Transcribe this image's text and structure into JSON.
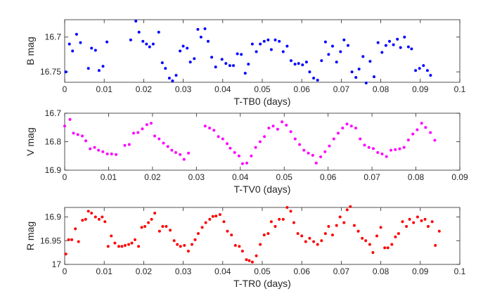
{
  "chart_data": [
    {
      "type": "scatter",
      "xlabel": "T-TB0 (days)",
      "ylabel": "B mag",
      "xlim": [
        0,
        0.1
      ],
      "ylim": [
        16.765,
        16.675
      ],
      "y_reversed": true,
      "xticks": [
        0,
        0.01,
        0.02,
        0.03,
        0.04,
        0.05,
        0.06,
        0.07,
        0.08,
        0.09,
        0.1
      ],
      "xtick_labels": [
        "0",
        "0.01",
        "0.02",
        "0.03",
        "0.04",
        "0.05",
        "0.06",
        "0.07",
        "0.08",
        "0.09",
        "0.1"
      ],
      "yticks": [
        16.7,
        16.75
      ],
      "ytick_labels": [
        "16.7",
        "16.75"
      ],
      "grid": false,
      "marker_color": "#0000ff",
      "series": [
        {
          "name": "B",
          "x": [
            0.0003,
            0.0012,
            0.002,
            0.003,
            0.004,
            0.006,
            0.0068,
            0.0078,
            0.0087,
            0.0097,
            0.0107,
            0.0167,
            0.018,
            0.0188,
            0.0198,
            0.0207,
            0.0215,
            0.0224,
            0.0238,
            0.0247,
            0.0255,
            0.0265,
            0.0273,
            0.0282,
            0.0292,
            0.03,
            0.031,
            0.0318,
            0.0328,
            0.0337,
            0.0345,
            0.0355,
            0.0363,
            0.0372,
            0.0382,
            0.0398,
            0.0408,
            0.0418,
            0.0427,
            0.0437,
            0.0447,
            0.0457,
            0.0465,
            0.0475,
            0.0485,
            0.0495,
            0.0505,
            0.0515,
            0.0523,
            0.0533,
            0.0543,
            0.0553,
            0.0563,
            0.0573,
            0.0583,
            0.0592,
            0.0602,
            0.0612,
            0.062,
            0.063,
            0.064,
            0.065,
            0.066,
            0.0668,
            0.0678,
            0.0688,
            0.0698,
            0.0707,
            0.0717,
            0.0727,
            0.0737,
            0.0745,
            0.0755,
            0.0763,
            0.0773,
            0.0783,
            0.0793,
            0.0803,
            0.0813,
            0.0822,
            0.0832,
            0.0842,
            0.085,
            0.086,
            0.087,
            0.0878,
            0.0888,
            0.0898,
            0.0908,
            0.0918,
            0.0926
          ],
          "y": [
            16.75,
            16.71,
            16.72,
            16.696,
            16.708,
            16.745,
            16.716,
            16.719,
            16.748,
            16.742,
            16.707,
            16.704,
            16.677,
            16.693,
            16.706,
            16.71,
            16.714,
            16.71,
            16.693,
            16.737,
            16.745,
            16.759,
            16.763,
            16.755,
            16.72,
            16.713,
            16.716,
            16.736,
            16.731,
            16.689,
            16.7,
            16.688,
            16.706,
            16.729,
            16.743,
            16.732,
            16.738,
            16.741,
            16.741,
            16.724,
            16.725,
            16.752,
            16.739,
            16.71,
            16.721,
            16.71,
            16.706,
            16.704,
            16.718,
            16.704,
            16.706,
            16.721,
            16.713,
            16.734,
            16.739,
            16.738,
            16.74,
            16.736,
            16.75,
            16.759,
            16.762,
            16.734,
            16.707,
            16.725,
            16.713,
            16.736,
            16.721,
            16.704,
            16.712,
            16.75,
            16.758,
            16.746,
            16.728,
            16.766,
            16.735,
            16.757,
            16.708,
            16.722,
            16.712,
            16.706,
            16.711,
            16.703,
            16.715,
            16.7,
            16.714,
            16.717,
            16.748,
            16.745,
            16.741,
            16.748,
            16.755
          ]
        }
      ]
    },
    {
      "type": "scatter",
      "xlabel": "T-TV0 (days)",
      "ylabel": "V mag",
      "xlim": [
        0,
        0.09
      ],
      "ylim": [
        16.9,
        16.7
      ],
      "y_reversed": true,
      "xticks": [
        0,
        0.01,
        0.02,
        0.03,
        0.04,
        0.05,
        0.06,
        0.07,
        0.08,
        0.09
      ],
      "xtick_labels": [
        "0",
        "0.01",
        "0.02",
        "0.03",
        "0.04",
        "0.05",
        "0.06",
        "0.07",
        "0.08",
        "0.09"
      ],
      "yticks": [
        16.7,
        16.8,
        16.9
      ],
      "ytick_labels": [
        "16.7",
        "16.8",
        "16.9"
      ],
      "grid": false,
      "marker_color": "#ff00ff",
      "series": [
        {
          "name": "V",
          "x": [
            0.0,
            0.0012,
            0.002,
            0.003,
            0.004,
            0.0048,
            0.0058,
            0.0068,
            0.0077,
            0.0087,
            0.0097,
            0.0107,
            0.0117,
            0.0137,
            0.0147,
            0.0157,
            0.0167,
            0.0177,
            0.0187,
            0.0197,
            0.0205,
            0.0215,
            0.0225,
            0.0235,
            0.0244,
            0.0253,
            0.0263,
            0.0272,
            0.0282,
            0.032,
            0.033,
            0.034,
            0.035,
            0.036,
            0.037,
            0.0377,
            0.0387,
            0.0397,
            0.0405,
            0.0415,
            0.0425,
            0.0435,
            0.0445,
            0.0455,
            0.0465,
            0.0475,
            0.0485,
            0.0495,
            0.0505,
            0.0515,
            0.0525,
            0.0535,
            0.0545,
            0.0555,
            0.0565,
            0.0573,
            0.0583,
            0.0593,
            0.0603,
            0.0613,
            0.0623,
            0.0633,
            0.0643,
            0.0653,
            0.0663,
            0.0673,
            0.0683,
            0.0693,
            0.0703,
            0.0713,
            0.0723,
            0.0733,
            0.0743,
            0.0753,
            0.0763,
            0.0773,
            0.0783,
            0.0793,
            0.0803,
            0.0813,
            0.0822,
            0.0833,
            0.0843
          ],
          "y": [
            16.745,
            16.722,
            16.77,
            16.775,
            16.78,
            16.797,
            16.825,
            16.82,
            16.83,
            16.835,
            16.843,
            16.843,
            16.845,
            16.813,
            16.81,
            16.77,
            16.768,
            16.755,
            16.74,
            16.735,
            16.78,
            16.79,
            16.805,
            16.817,
            16.83,
            16.838,
            16.845,
            16.862,
            16.84,
            16.745,
            16.752,
            16.76,
            16.782,
            16.79,
            16.807,
            16.823,
            16.838,
            16.85,
            16.877,
            16.875,
            16.85,
            16.82,
            16.8,
            16.782,
            16.752,
            16.745,
            16.756,
            16.73,
            16.742,
            16.765,
            16.79,
            16.81,
            16.83,
            16.84,
            16.848,
            16.875,
            16.853,
            16.835,
            16.815,
            16.79,
            16.77,
            16.752,
            16.738,
            16.745,
            16.752,
            16.79,
            16.812,
            16.82,
            16.824,
            16.838,
            16.843,
            16.852,
            16.83,
            16.828,
            16.825,
            16.82,
            16.794,
            16.773,
            16.758,
            16.735,
            16.75,
            16.768,
            16.795
          ]
        }
      ]
    },
    {
      "type": "scatter",
      "xlabel": "T-TR0 (days)",
      "ylabel": "R mag",
      "xlim": [
        0,
        0.1
      ],
      "ylim": [
        17.0,
        16.88
      ],
      "y_reversed": true,
      "xticks": [
        0,
        0.01,
        0.02,
        0.03,
        0.04,
        0.05,
        0.06,
        0.07,
        0.08,
        0.09,
        0.1
      ],
      "xtick_labels": [
        "0",
        "0.01",
        "0.02",
        "0.03",
        "0.04",
        "0.05",
        "0.06",
        "0.07",
        "0.08",
        "0.09",
        "0.1"
      ],
      "yticks": [
        16.9,
        16.95,
        17.0
      ],
      "ytick_labels": [
        "16.9",
        "16.95",
        "17"
      ],
      "grid": false,
      "marker_color": "#ff0000",
      "series": [
        {
          "name": "R",
          "x": [
            0.0003,
            0.001,
            0.0018,
            0.0027,
            0.0035,
            0.0045,
            0.0053,
            0.006,
            0.0068,
            0.0078,
            0.0087,
            0.0095,
            0.0102,
            0.011,
            0.0118,
            0.0127,
            0.0137,
            0.0145,
            0.0153,
            0.0162,
            0.017,
            0.0178,
            0.0187,
            0.0195,
            0.0203,
            0.0212,
            0.022,
            0.0228,
            0.024,
            0.0248,
            0.0257,
            0.0267,
            0.0277,
            0.0285,
            0.0293,
            0.0303,
            0.0313,
            0.0322,
            0.033,
            0.0338,
            0.0348,
            0.0357,
            0.0367,
            0.0375,
            0.0383,
            0.0393,
            0.0403,
            0.0412,
            0.0422,
            0.0432,
            0.0442,
            0.045,
            0.046,
            0.0467,
            0.0475,
            0.0485,
            0.0495,
            0.0505,
            0.0515,
            0.0523,
            0.0533,
            0.0543,
            0.0553,
            0.0563,
            0.0572,
            0.058,
            0.059,
            0.06,
            0.061,
            0.062,
            0.063,
            0.064,
            0.065,
            0.066,
            0.0668,
            0.0678,
            0.0688,
            0.0697,
            0.0707,
            0.0715,
            0.0723,
            0.0733,
            0.0743,
            0.0753,
            0.0762,
            0.0772,
            0.078,
            0.079,
            0.08,
            0.081,
            0.0818,
            0.0828,
            0.0837,
            0.0845,
            0.0855,
            0.0865,
            0.0873,
            0.0883,
            0.0893,
            0.0903,
            0.0912,
            0.092,
            0.093,
            0.0938,
            0.0948
          ],
          "y": [
            16.978,
            16.948,
            16.948,
            16.925,
            16.952,
            16.907,
            16.905,
            16.888,
            16.892,
            16.9,
            16.905,
            16.9,
            16.91,
            16.962,
            16.94,
            16.955,
            16.962,
            16.962,
            16.96,
            16.958,
            16.955,
            16.948,
            16.962,
            16.922,
            16.92,
            16.912,
            16.905,
            16.892,
            16.93,
            16.92,
            16.92,
            16.928,
            16.95,
            16.958,
            16.962,
            16.96,
            16.972,
            16.958,
            16.948,
            16.935,
            16.922,
            16.912,
            16.905,
            16.899,
            16.898,
            16.895,
            16.91,
            16.93,
            16.938,
            16.96,
            16.962,
            16.972,
            16.99,
            16.992,
            16.995,
            16.982,
            16.958,
            16.938,
            16.935,
            16.91,
            16.92,
            16.905,
            16.905,
            16.88,
            16.888,
            16.912,
            16.935,
            16.94,
            16.952,
            16.945,
            16.952,
            16.958,
            16.95,
            16.935,
            16.92,
            16.938,
            16.918,
            16.9,
            16.912,
            16.885,
            16.878,
            16.918,
            16.93,
            16.945,
            16.95,
            16.958,
            16.975,
            16.94,
            16.922,
            16.965,
            16.965,
            16.958,
            16.942,
            16.935,
            16.91,
            16.92,
            16.905,
            16.912,
            16.9,
            16.908,
            16.905,
            16.92,
            16.91,
            16.96,
            16.93
          ]
        }
      ]
    }
  ]
}
